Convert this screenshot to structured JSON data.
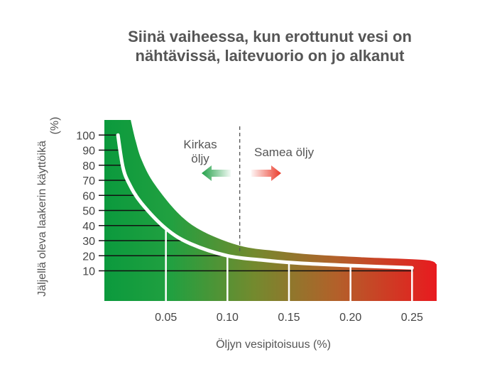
{
  "title_line1": "Siinä vaiheessa, kun erottunut vesi on",
  "title_line2": "nähtävissä, laitevuorio on jo alkanut",
  "chart_data": {
    "type": "area",
    "xlabel": "Öljyn vesipitoisuus (%)",
    "ylabel_line1": "Jäljellä oleva laakerin käyttöikä",
    "ylabel_line2": "(%)",
    "xticks": [
      0.05,
      0.1,
      0.15,
      0.2,
      0.25
    ],
    "xtick_labels": [
      "0.05",
      "0.10",
      "0.15",
      "0.20",
      "0.25"
    ],
    "yticks": [
      10,
      20,
      30,
      40,
      50,
      60,
      70,
      80,
      90,
      100
    ],
    "xlim": [
      0,
      0.27
    ],
    "ylim": [
      -10,
      110
    ],
    "divider_x": 0.11,
    "series": [
      {
        "x": [
          0.011,
          0.015,
          0.02,
          0.03,
          0.05,
          0.07,
          0.1,
          0.13,
          0.16,
          0.2,
          0.25
        ],
        "y": [
          100,
          79,
          68,
          55,
          38,
          28,
          20,
          17,
          15,
          13.5,
          12
        ]
      }
    ],
    "annotations": {
      "left_line1": "Kirkas",
      "left_line2": "öljy",
      "right": "Samea öljy"
    },
    "colors": {
      "start": "#0b9a3d",
      "mid": "#8a8228",
      "end": "#e81a1f",
      "curve": "#ffffff",
      "arrow_green": "#21a047",
      "arrow_red": "#ea3a2a"
    }
  }
}
